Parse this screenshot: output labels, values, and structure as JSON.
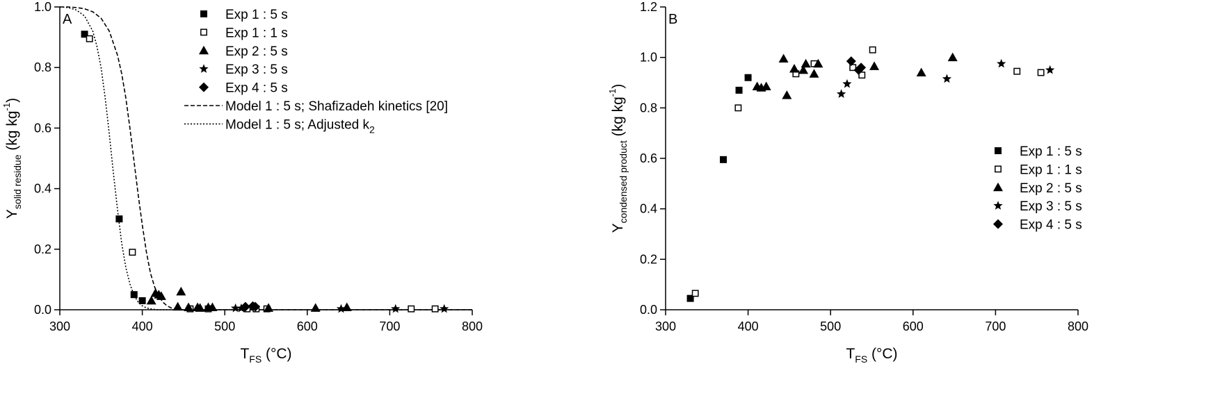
{
  "chart_data": [
    {
      "type": "scatter",
      "panel_label": "A",
      "xlabel": {
        "main": "T",
        "sub": "FS",
        "suffix": " (°C)"
      },
      "ylabel": {
        "main": "Y",
        "sub": "solid residue",
        "suffix": " (kg kg",
        "sup": "-1",
        "end": ")"
      },
      "xlim": [
        300,
        800
      ],
      "ylim": [
        0.0,
        1.0
      ],
      "xticks": [
        "300",
        "400",
        "500",
        "600",
        "700",
        "800"
      ],
      "yticks": [
        "0.0",
        "0.2",
        "0.4",
        "0.6",
        "0.8",
        "1.0"
      ],
      "legend_position": "top-center",
      "grid": false,
      "series": [
        {
          "name": "Exp 1 : 5 s",
          "marker": "filled-square",
          "points": [
            [
              330,
              0.91
            ],
            [
              372,
              0.3
            ],
            [
              390,
              0.05
            ],
            [
              400,
              0.03
            ]
          ]
        },
        {
          "name": "Exp 1 : 1 s",
          "marker": "open-square",
          "points": [
            [
              336,
              0.895
            ],
            [
              388,
              0.19
            ],
            [
              458,
              0.003
            ],
            [
              480,
              0.003
            ],
            [
              527,
              0.003
            ],
            [
              538,
              0.003
            ],
            [
              551,
              0.003
            ],
            [
              726,
              0.003
            ],
            [
              755,
              0.003
            ]
          ]
        },
        {
          "name": "Exp 2 : 5 s",
          "marker": "triangle",
          "points": [
            [
              411,
              0.03
            ],
            [
              416,
              0.055
            ],
            [
              420,
              0.05
            ],
            [
              423,
              0.045
            ],
            [
              443,
              0.01
            ],
            [
              447,
              0.06
            ],
            [
              456,
              0.008
            ],
            [
              467,
              0.008
            ],
            [
              470,
              0.006
            ],
            [
              480,
              0.008
            ],
            [
              485,
              0.008
            ],
            [
              553,
              0.006
            ],
            [
              610,
              0.006
            ],
            [
              648,
              0.008
            ]
          ]
        },
        {
          "name": "Exp 3 : 5 s",
          "marker": "star",
          "points": [
            [
              513,
              0.005
            ],
            [
              520,
              0.005
            ],
            [
              641,
              0.003
            ],
            [
              707,
              0.003
            ],
            [
              766,
              0.003
            ]
          ]
        },
        {
          "name": "Exp 4 : 5 s",
          "marker": "diamond",
          "points": [
            [
              525,
              0.01
            ],
            [
              534,
              0.012
            ],
            [
              537,
              0.01
            ]
          ]
        },
        {
          "name": "Model 1 : 5 s; Shafizadeh kinetics [20]",
          "line": "dashed",
          "x": [
            300,
            310,
            320,
            330,
            340,
            350,
            360,
            370,
            375,
            380,
            385,
            390,
            395,
            400,
            405,
            410,
            415,
            420,
            425,
            430,
            435,
            440,
            445,
            450,
            460,
            800
          ],
          "y": [
            1.0,
            1.0,
            0.998,
            0.994,
            0.984,
            0.963,
            0.92,
            0.84,
            0.78,
            0.7,
            0.6,
            0.49,
            0.38,
            0.28,
            0.19,
            0.12,
            0.075,
            0.045,
            0.025,
            0.013,
            0.006,
            0.003,
            0.001,
            0.0,
            0.0,
            0.0
          ]
        },
        {
          "name": "Model 1 : 5 s; Adjusted k2",
          "legend_main": "Model 1 : 5 s; Adjusted k",
          "legend_sub": "2",
          "line": "dotted",
          "x": [
            300,
            310,
            320,
            330,
            340,
            345,
            350,
            355,
            360,
            365,
            370,
            375,
            380,
            385,
            390,
            395,
            400,
            405,
            410,
            415,
            420,
            430,
            800
          ],
          "y": [
            1.0,
            0.998,
            0.99,
            0.97,
            0.92,
            0.87,
            0.8,
            0.7,
            0.58,
            0.45,
            0.33,
            0.22,
            0.14,
            0.085,
            0.048,
            0.025,
            0.013,
            0.006,
            0.003,
            0.001,
            0.0,
            0.0,
            0.0
          ]
        }
      ]
    },
    {
      "type": "scatter",
      "panel_label": "B",
      "xlabel": {
        "main": "T",
        "sub": "FS",
        "suffix": " (°C)"
      },
      "ylabel": {
        "main": "Y",
        "sub": "condensed product",
        "suffix": " (kg kg",
        "sup": "-1",
        "end": ")"
      },
      "xlim": [
        300,
        800
      ],
      "ylim": [
        0.0,
        1.2
      ],
      "xticks": [
        "300",
        "400",
        "500",
        "600",
        "700",
        "800"
      ],
      "yticks": [
        "0.0",
        "0.2",
        "0.4",
        "0.6",
        "0.8",
        "1.0",
        "1.2"
      ],
      "legend_position": "right",
      "grid": false,
      "series": [
        {
          "name": "Exp 1 : 5 s",
          "marker": "filled-square",
          "points": [
            [
              330,
              0.045
            ],
            [
              370,
              0.595
            ],
            [
              389,
              0.87
            ],
            [
              400,
              0.92
            ]
          ]
        },
        {
          "name": "Exp 1 : 1 s",
          "marker": "open-square",
          "points": [
            [
              336,
              0.065
            ],
            [
              388,
              0.8
            ],
            [
              458,
              0.935
            ],
            [
              480,
              0.975
            ],
            [
              527,
              0.96
            ],
            [
              538,
              0.93
            ],
            [
              551,
              1.03
            ],
            [
              726,
              0.945
            ],
            [
              755,
              0.94
            ]
          ]
        },
        {
          "name": "Exp 2 : 5 s",
          "marker": "triangle",
          "points": [
            [
              411,
              0.885
            ],
            [
              416,
              0.88
            ],
            [
              422,
              0.885
            ],
            [
              443,
              0.995
            ],
            [
              447,
              0.85
            ],
            [
              456,
              0.955
            ],
            [
              467,
              0.95
            ],
            [
              470,
              0.975
            ],
            [
              480,
              0.935
            ],
            [
              485,
              0.975
            ],
            [
              553,
              0.965
            ],
            [
              610,
              0.94
            ],
            [
              648,
              1.0
            ]
          ]
        },
        {
          "name": "Exp 3 : 5 s",
          "marker": "star",
          "points": [
            [
              513,
              0.855
            ],
            [
              520,
              0.895
            ],
            [
              641,
              0.915
            ],
            [
              707,
              0.975
            ],
            [
              766,
              0.95
            ]
          ]
        },
        {
          "name": "Exp 4 : 5 s",
          "marker": "diamond",
          "points": [
            [
              525,
              0.985
            ],
            [
              534,
              0.95
            ],
            [
              537,
              0.96
            ]
          ]
        }
      ]
    }
  ]
}
